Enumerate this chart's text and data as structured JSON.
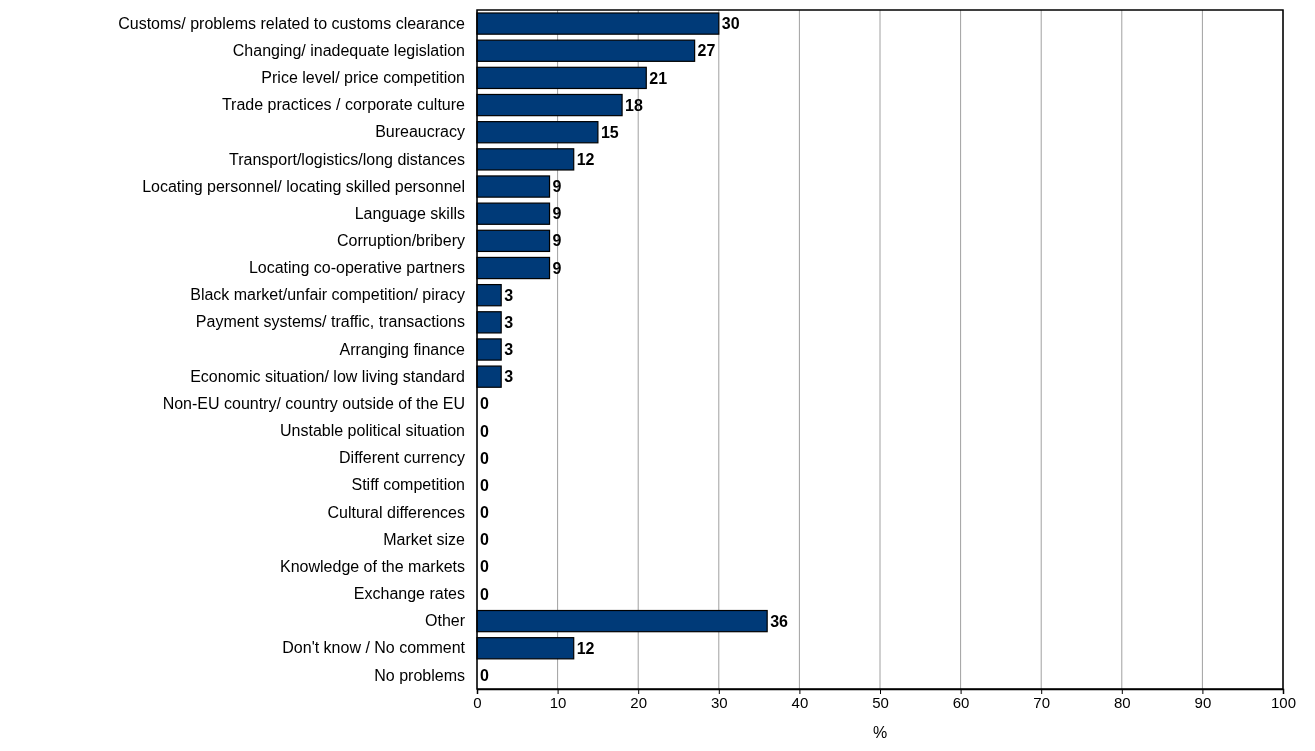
{
  "chart_data": {
    "type": "bar",
    "orientation": "horizontal",
    "categories": [
      "Customs/ problems related to customs clearance",
      "Changing/ inadequate legislation",
      "Price level/ price competition",
      "Trade practices / corporate culture",
      "Bureaucracy",
      "Transport/logistics/long distances",
      "Locating personnel/ locating skilled personnel",
      "Language skills",
      "Corruption/bribery",
      "Locating co-operative partners",
      "Black market/unfair competition/ piracy",
      "Payment systems/ traffic, transactions",
      "Arranging finance",
      "Economic situation/ low living standard",
      "Non-EU country/ country outside of the EU",
      "Unstable political situation",
      "Different currency",
      "Stiff competition",
      "Cultural differences",
      "Market size",
      "Knowledge of the markets",
      "Exchange rates",
      "Other",
      "Don't know / No comment",
      "No problems"
    ],
    "values": [
      30,
      27,
      21,
      18,
      15,
      12,
      9,
      9,
      9,
      9,
      3,
      3,
      3,
      3,
      0,
      0,
      0,
      0,
      0,
      0,
      0,
      0,
      36,
      12,
      0
    ],
    "color": "#003a78",
    "xlim": [
      0,
      100
    ],
    "xticks": [
      0,
      10,
      20,
      30,
      40,
      50,
      60,
      70,
      80,
      90,
      100
    ],
    "xlabel": "%",
    "grid": "x",
    "data_labels": true
  }
}
